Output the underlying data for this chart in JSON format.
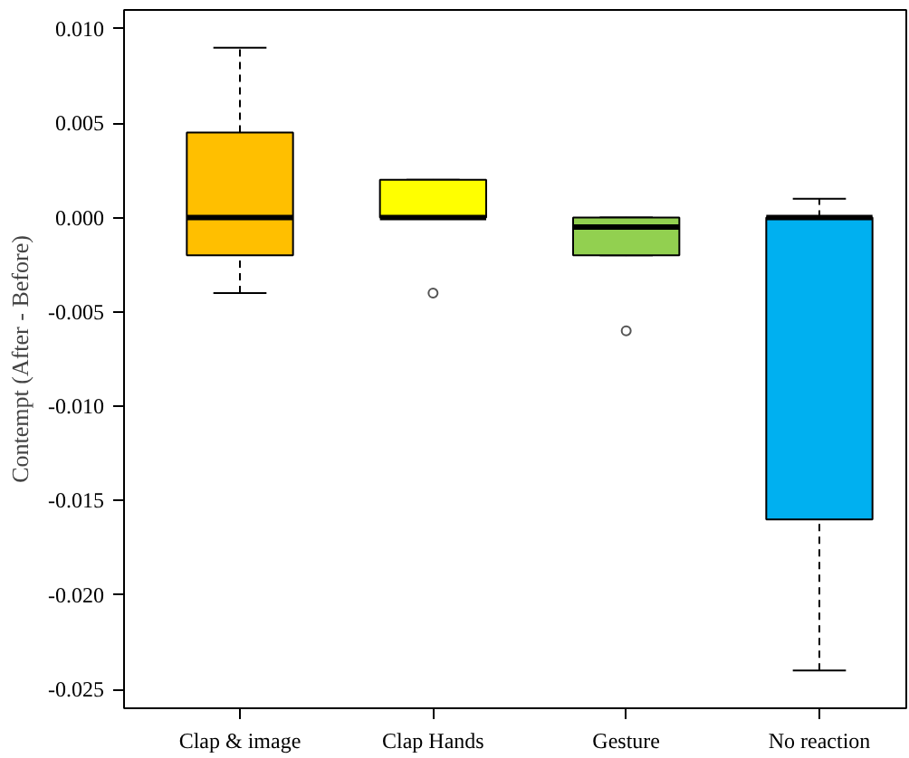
{
  "chart_data": {
    "type": "box",
    "ylabel": "Contempt (After - Before)",
    "categories": [
      "Clap & image",
      "Clap Hands",
      "Gesture",
      "No reaction"
    ],
    "ylim": [
      -0.026,
      0.011
    ],
    "yticks": [
      {
        "value": 0.01,
        "label": "0.010"
      },
      {
        "value": 0.005,
        "label": "0.005"
      },
      {
        "value": 0,
        "label": "0.000"
      },
      {
        "value": -0.005,
        "label": "-0.005"
      },
      {
        "value": -0.01,
        "label": "-0.010"
      },
      {
        "value": -0.015,
        "label": "-0.015"
      },
      {
        "value": -0.02,
        "label": "-0.020"
      },
      {
        "value": -0.025,
        "label": "-0.025"
      }
    ],
    "colors": [
      "#ffbf00",
      "#ffff00",
      "#92d050",
      "#00b0f0"
    ],
    "boxes": [
      {
        "low": -0.004,
        "q1": -0.002,
        "median": 0,
        "q3": 0.0045,
        "high": 0.009
      },
      {
        "low": 0,
        "q1": 0,
        "median": 0,
        "q3": 0.002,
        "high": 0.002,
        "outliers": [
          -0.004
        ]
      },
      {
        "low": -0.002,
        "q1": -0.002,
        "median": -0.0005,
        "q3": 0,
        "high": 0,
        "outliers": [
          -0.006
        ]
      },
      {
        "low": -0.024,
        "q1": -0.016,
        "median": 0,
        "q3": 0,
        "high": 0.001
      }
    ],
    "grid": false
  }
}
